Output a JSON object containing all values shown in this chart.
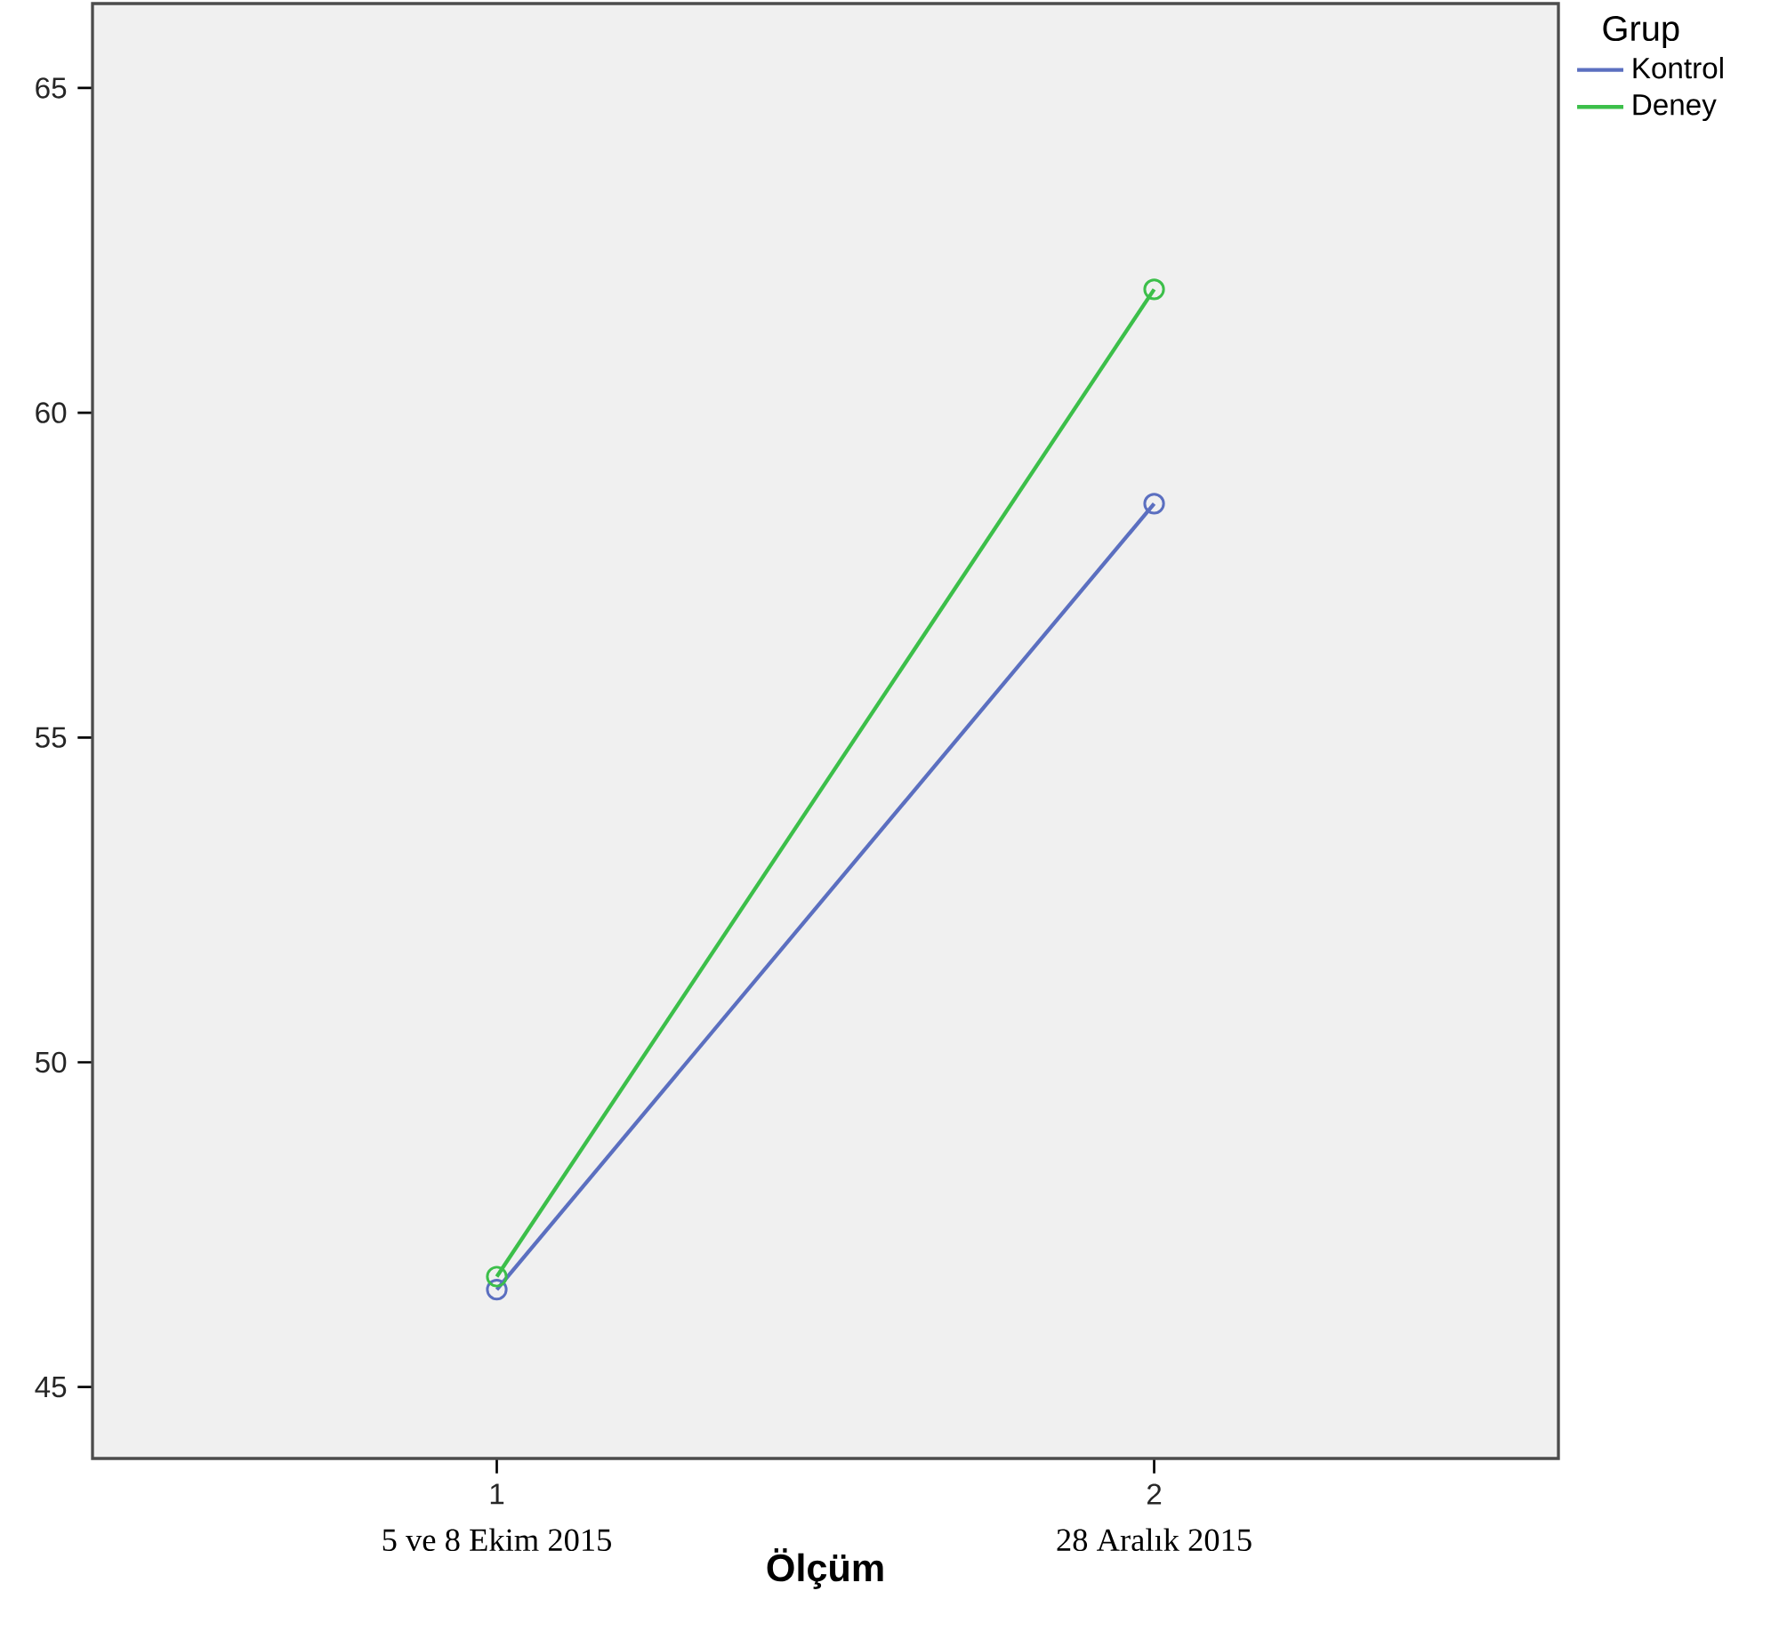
{
  "chart_data": {
    "type": "line",
    "xlabel": "Ölçüm",
    "legend_title": "Grup",
    "categories": [
      "1",
      "2"
    ],
    "annotations": [
      "5 ve 8 Ekim 2015",
      "28 Aralık 2015"
    ],
    "series": [
      {
        "name": "Kontrol",
        "color": "#5b6fc0",
        "values": [
          46.5,
          58.6
        ]
      },
      {
        "name": "Deney",
        "color": "#3cbf4a",
        "values": [
          46.7,
          61.9
        ]
      }
    ],
    "ylim": [
      43.9,
      66.3
    ],
    "yticks": [
      45,
      50,
      55,
      60,
      65
    ],
    "marker": "circle",
    "legend": "top right",
    "grid": false
  }
}
